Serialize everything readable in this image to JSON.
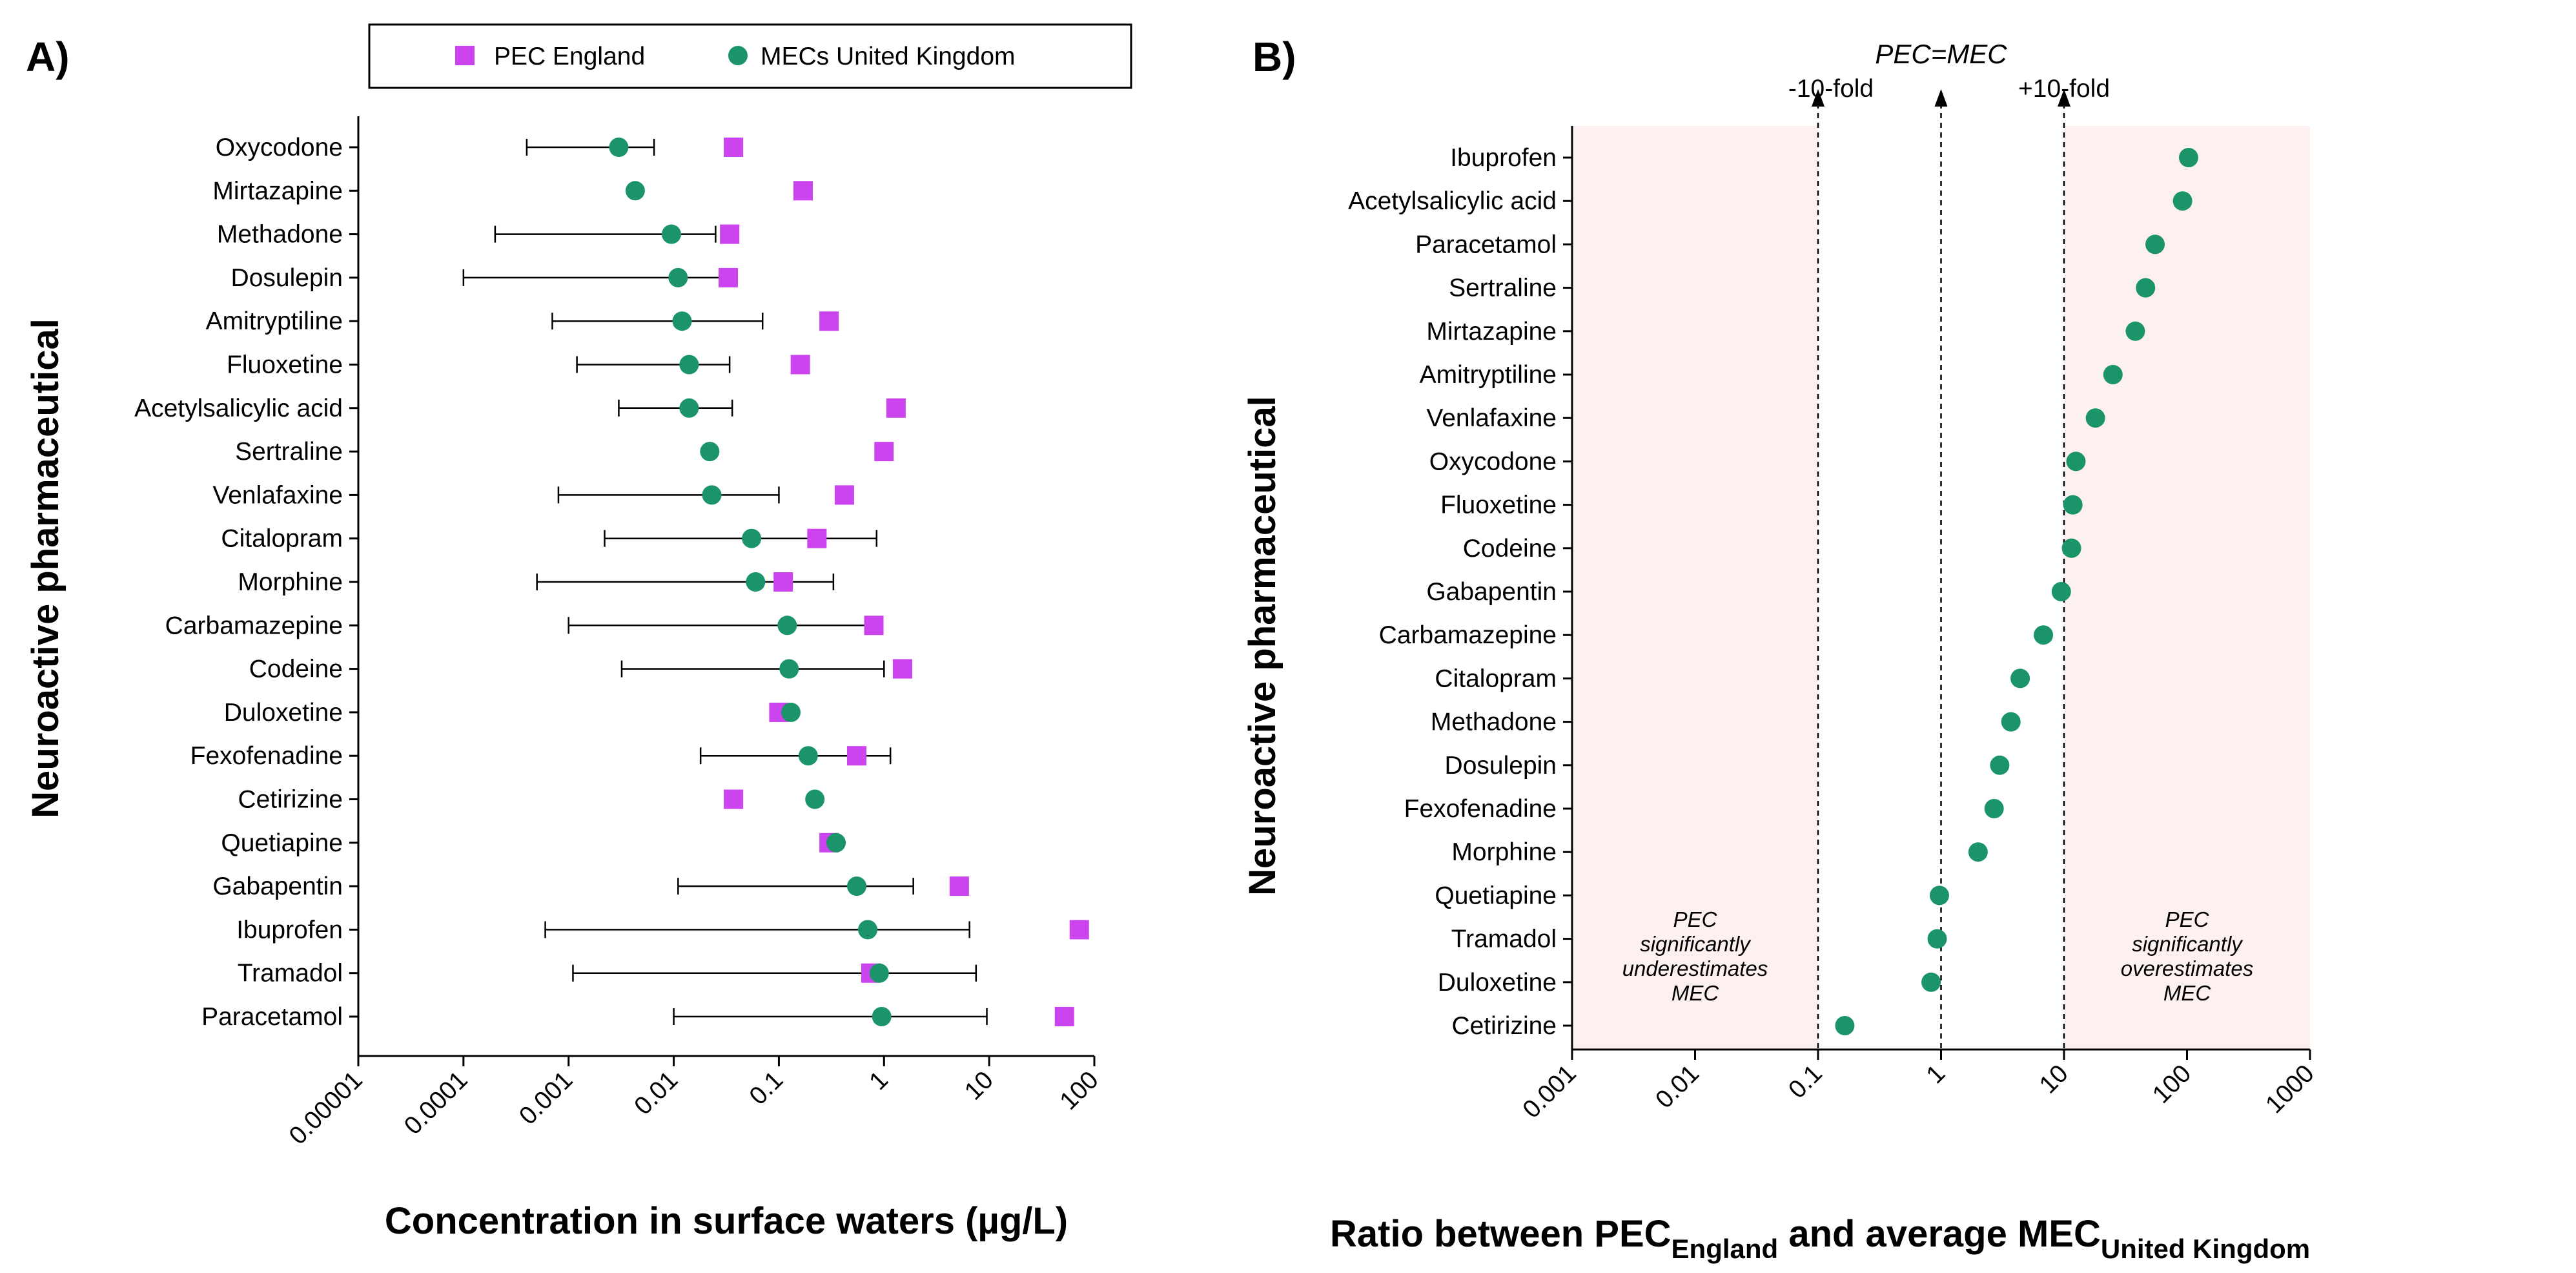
{
  "colors": {
    "pec": "#cc44ee",
    "mec": "#1a9468",
    "shade": "#fdf0f0",
    "axis": "#000000"
  },
  "chart_data": [
    {
      "type": "scatter",
      "panel_label": "A)",
      "xlabel": "Concentration in surface waters (µg/L)",
      "ylabel": "Neuroactive pharmaceutical",
      "xscale": "log",
      "xlim": [
        1e-05,
        100
      ],
      "xticks": [
        "0.00001",
        "0.0001",
        "0.001",
        "0.01",
        "0.1",
        "1",
        "10",
        "100"
      ],
      "legend": {
        "position": "top",
        "pec_label": "PEC England",
        "mec_label": "MECs United Kingdom"
      },
      "categories": [
        "Oxycodone",
        "Mirtazapine",
        "Methadone",
        "Dosulepin",
        "Amitryptiline",
        "Fluoxetine",
        "Acetylsalicylic acid",
        "Sertraline",
        "Venlafaxine",
        "Citalopram",
        "Morphine",
        "Carbamazepine",
        "Codeine",
        "Duloxetine",
        "Fexofenadine",
        "Cetirizine",
        "Quetiapine",
        "Gabapentin",
        "Ibuprofen",
        "Tramadol",
        "Paracetamol"
      ],
      "series": [
        {
          "name": "PEC England",
          "marker": "square",
          "values": [
            0.037,
            0.17,
            0.034,
            0.033,
            0.3,
            0.16,
            1.3,
            1.0,
            0.42,
            0.23,
            0.11,
            0.8,
            1.5,
            0.1,
            0.55,
            0.037,
            0.3,
            5.2,
            72,
            0.75,
            52
          ]
        },
        {
          "name": "MECs United Kingdom",
          "marker": "circle",
          "values": [
            0.003,
            0.0043,
            0.0095,
            0.011,
            0.012,
            0.014,
            0.014,
            0.022,
            0.023,
            0.055,
            0.06,
            0.12,
            0.125,
            0.13,
            0.19,
            0.22,
            0.35,
            0.55,
            0.7,
            0.9,
            0.95
          ],
          "range_min": [
            0.0004,
            null,
            0.0002,
            0.0001,
            0.0007,
            0.0012,
            0.003,
            null,
            0.0008,
            0.0022,
            0.0005,
            0.001,
            0.0032,
            null,
            0.018,
            null,
            null,
            0.011,
            0.0006,
            0.0011,
            0.01
          ],
          "range_max": [
            0.0065,
            null,
            0.025,
            0.03,
            0.07,
            0.034,
            0.036,
            null,
            0.1,
            0.85,
            0.33,
            0.75,
            1.0,
            null,
            1.15,
            null,
            null,
            1.9,
            6.5,
            7.5,
            9.5
          ]
        }
      ]
    },
    {
      "type": "scatter",
      "panel_label": "B)",
      "xlabel_main": "Ratio between PEC",
      "xlabel_sub1": "England",
      "xlabel_mid": " and average MEC",
      "xlabel_sub2": "United Kingdom",
      "ylabel": "Neuroactive pharmaceutical",
      "xscale": "log",
      "xlim": [
        0.001,
        1000
      ],
      "xticks": [
        "0.001",
        "0.01",
        "0.1",
        "1",
        "10",
        "100",
        "1000"
      ],
      "categories": [
        "Ibuprofen",
        "Acetylsalicylic acid",
        "Paracetamol",
        "Sertraline",
        "Mirtazapine",
        "Amitryptiline",
        "Venlafaxine",
        "Oxycodone",
        "Fluoxetine",
        "Codeine",
        "Gabapentin",
        "Carbamazepine",
        "Citalopram",
        "Methadone",
        "Dosulepin",
        "Fexofenadine",
        "Morphine",
        "Quetiapine",
        "Tramadol",
        "Duloxetine",
        "Cetirizine"
      ],
      "values": [
        103,
        92,
        55,
        46,
        38,
        25,
        18,
        12.5,
        11.8,
        11.5,
        9.5,
        6.8,
        4.4,
        3.7,
        3.0,
        2.7,
        2.0,
        0.97,
        0.93,
        0.83,
        0.165
      ],
      "reference_lines": [
        {
          "x": 0.1,
          "label": "-10-fold"
        },
        {
          "x": 1,
          "label": "PEC=MEC"
        },
        {
          "x": 10,
          "label": "+10-fold"
        }
      ],
      "shaded_regions": [
        {
          "from": 0.001,
          "to": 0.1,
          "label": "PEC significantly underestimates MEC"
        },
        {
          "from": 10,
          "to": 1000,
          "label": "PEC significantly overestimates MEC"
        }
      ],
      "region_text_left": [
        "PEC",
        "significantly",
        "underestimates",
        "MEC"
      ],
      "region_text_right": [
        "PEC",
        "significantly",
        "overestimates",
        "MEC"
      ]
    }
  ]
}
